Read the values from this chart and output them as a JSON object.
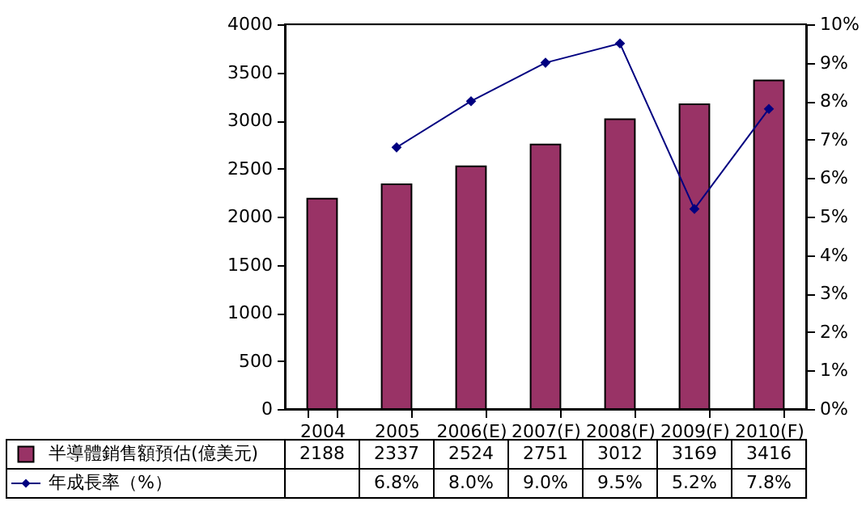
{
  "chart_data": {
    "type": "bar",
    "categories": [
      "2004",
      "2005",
      "2006(E)",
      "2007(F)",
      "2008(F)",
      "2009(F)",
      "2010(F)"
    ],
    "series": [
      {
        "name": "半導體銷售額預估(億美元)",
        "color": "#993366",
        "values": [
          2188,
          2337,
          2524,
          2751,
          3012,
          3169,
          3416
        ],
        "value_labels": [
          "2188",
          "2337",
          "2524",
          "2751",
          "3012",
          "3169",
          "3416"
        ]
      },
      {
        "name": "年成長率（%）",
        "type": "line",
        "axis": "y2",
        "color": "#000080",
        "marker": "diamond",
        "values": [
          null,
          6.8,
          8.0,
          9.0,
          9.5,
          5.2,
          7.8
        ],
        "value_labels": [
          null,
          "6.8%",
          "8.0%",
          "9.0%",
          "9.5%",
          "5.2%",
          "7.8%"
        ]
      }
    ],
    "ylim": [
      0,
      4000
    ],
    "yticks": [
      0,
      500,
      1000,
      1500,
      2000,
      2500,
      3000,
      3500,
      4000
    ],
    "y2lim": [
      0,
      10
    ],
    "y2ticks": [
      {
        "value": 0,
        "label": "0%"
      },
      {
        "value": 1,
        "label": "1%"
      },
      {
        "value": 2,
        "label": "2%"
      },
      {
        "value": 3,
        "label": "3%"
      },
      {
        "value": 4,
        "label": "4%"
      },
      {
        "value": 5,
        "label": "5%"
      },
      {
        "value": 6,
        "label": "6%"
      },
      {
        "value": 7,
        "label": "7%"
      },
      {
        "value": 8,
        "label": "8%"
      },
      {
        "value": 9,
        "label": "9%"
      },
      {
        "value": 10,
        "label": "10%"
      }
    ],
    "legend": "bottom left"
  }
}
